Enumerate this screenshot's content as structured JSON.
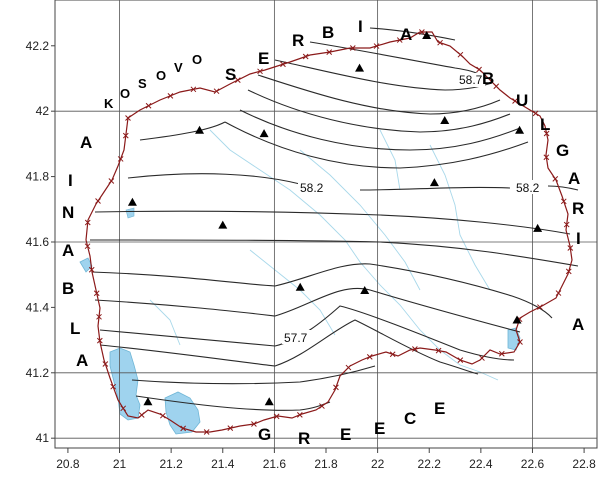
{
  "axes": {
    "x_ticks": [
      "20.8",
      "21",
      "21.2",
      "21.4",
      "21.6",
      "21.8",
      "22",
      "22.2",
      "22.4",
      "22.6",
      "22.8"
    ],
    "y_ticks": [
      "42.2",
      "42",
      "41.8",
      "41.6",
      "41.4",
      "41.2",
      "41"
    ],
    "x_range": [
      20.75,
      22.85
    ],
    "y_range": [
      40.97,
      42.34
    ],
    "grid_x": [
      21,
      21.6,
      22,
      22.6
    ],
    "grid_y": [
      42,
      41.6,
      41.2,
      41
    ]
  },
  "countries": {
    "serbia": [
      "S",
      "E",
      "R",
      "B",
      "I",
      "A"
    ],
    "bulgaria": [
      "B",
      "U",
      "L",
      "G",
      "A",
      "R",
      "I",
      "A"
    ],
    "kosovo": [
      "K",
      "O",
      "S",
      "O",
      "V",
      "O"
    ],
    "albania": [
      "A",
      "L",
      "B",
      "A",
      "N",
      "I",
      "A"
    ],
    "greece": [
      "G",
      "R",
      "E",
      "E",
      "C",
      "E"
    ]
  },
  "isoline_labels": [
    "58.7",
    "58.2",
    "58.2",
    "57.7"
  ],
  "stations": [
    {
      "lon": 22.19,
      "lat": 42.23
    },
    {
      "lon": 21.93,
      "lat": 42.13
    },
    {
      "lon": 22.26,
      "lat": 41.97
    },
    {
      "lon": 22.55,
      "lat": 41.94
    },
    {
      "lon": 21.31,
      "lat": 41.94
    },
    {
      "lon": 21.56,
      "lat": 41.93
    },
    {
      "lon": 22.22,
      "lat": 41.78
    },
    {
      "lon": 21.05,
      "lat": 41.72
    },
    {
      "lon": 21.4,
      "lat": 41.65
    },
    {
      "lon": 22.62,
      "lat": 41.64
    },
    {
      "lon": 21.7,
      "lat": 41.46
    },
    {
      "lon": 21.95,
      "lat": 41.45
    },
    {
      "lon": 22.54,
      "lat": 41.36
    },
    {
      "lon": 21.11,
      "lat": 41.11
    },
    {
      "lon": 21.58,
      "lat": 41.11
    }
  ],
  "colors": {
    "border": "#8b1a1a",
    "isoline": "#2a2a2a",
    "grid": "#555555",
    "lake": "#9fd3ee",
    "river": "#a8d8ea"
  }
}
